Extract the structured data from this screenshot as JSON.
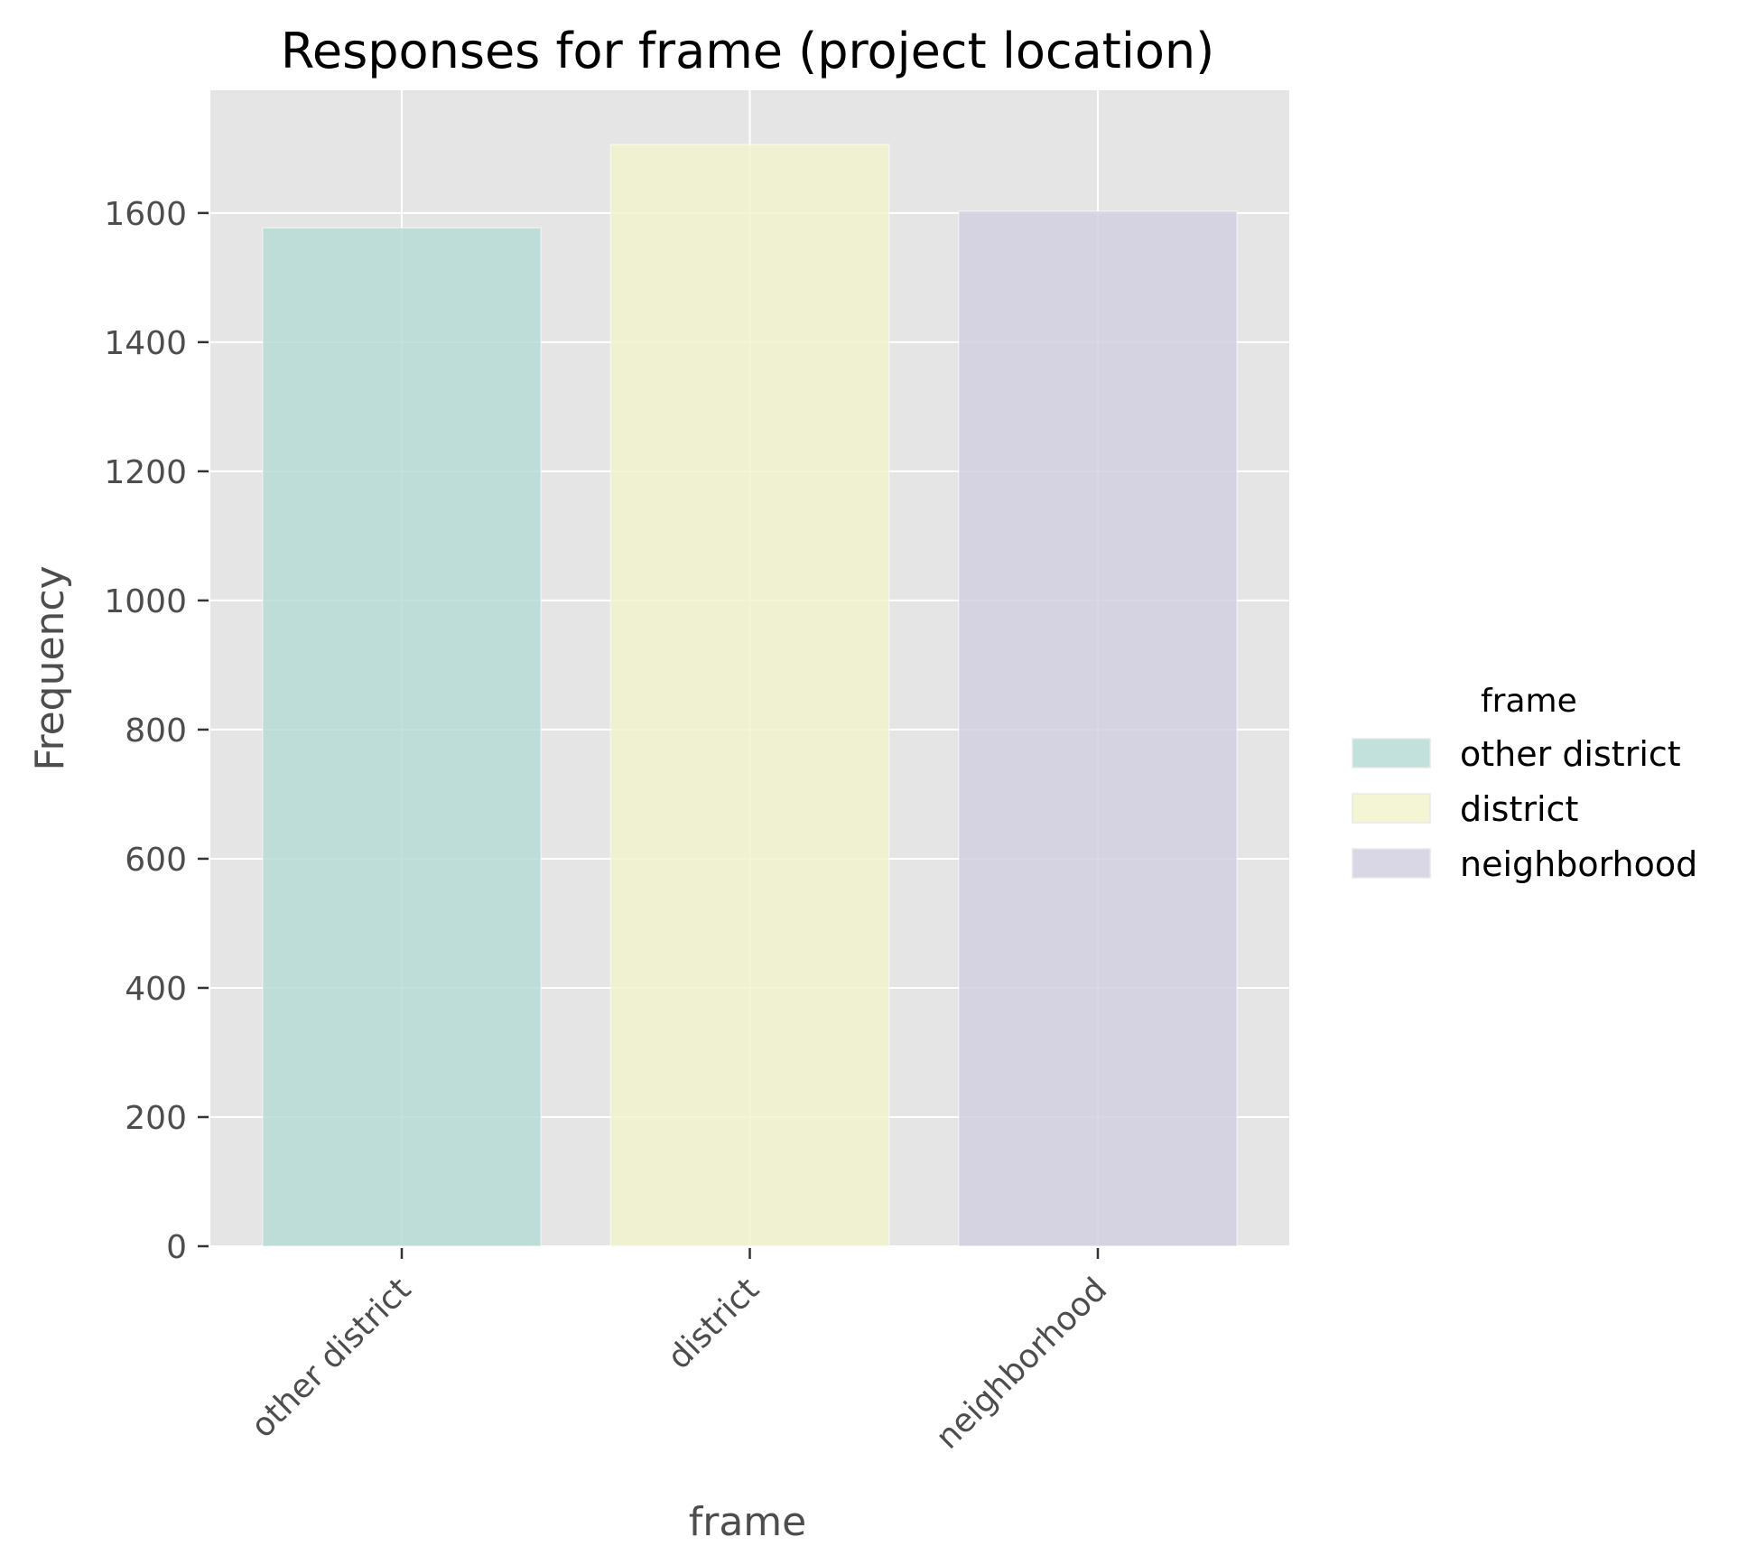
{
  "chart_data": {
    "type": "bar",
    "title": "Responses for frame (project location)",
    "xlabel": "frame",
    "ylabel": "Frequency",
    "categories": [
      "other district",
      "district",
      "neighborhood"
    ],
    "values": [
      1577,
      1706,
      1603
    ],
    "colors": [
      "#b7dbd6",
      "#f2f3cc",
      "#d2cfe0"
    ],
    "ylim": [
      0,
      1790
    ],
    "yticks": [
      0,
      200,
      400,
      600,
      800,
      1000,
      1200,
      1400,
      1600
    ],
    "grid": true,
    "panel_background": "#e5e5e5",
    "gridline_color": "#ffffff",
    "legend": {
      "title": "frame",
      "placement": "right",
      "entries": [
        "other district",
        "district",
        "neighborhood"
      ]
    }
  }
}
